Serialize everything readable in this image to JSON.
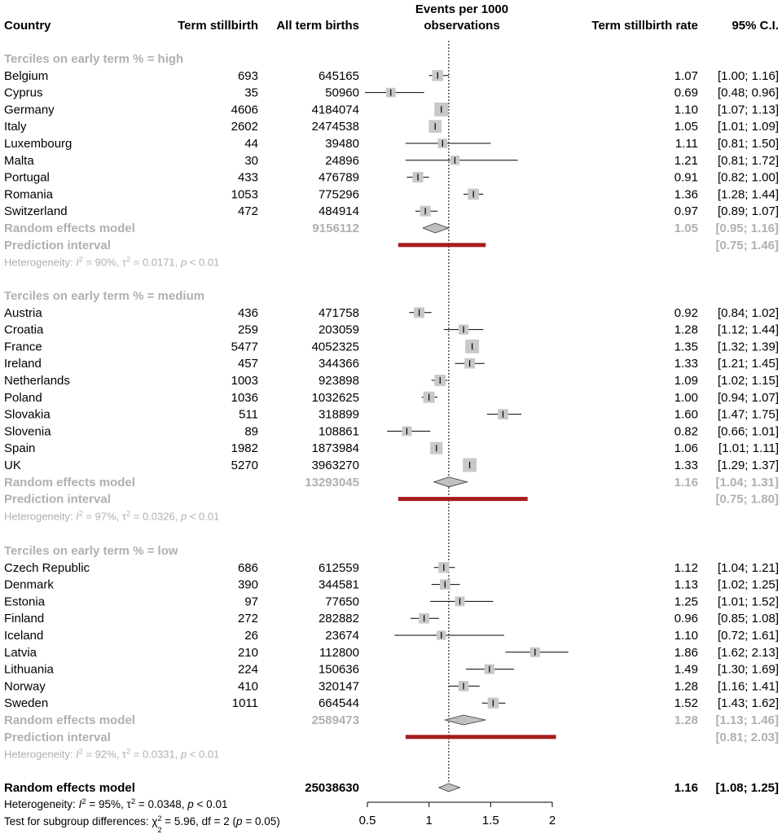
{
  "colors": {
    "text": "#000000",
    "grey_text": "#b0b0b0",
    "box": "#c8c8c8",
    "diamond": "#c0c0c0",
    "prediction_bar": "#a51d1d",
    "ci_line": "#000000"
  },
  "headers": {
    "country": "Country",
    "stillbirth": "Term stillbirth",
    "births": "All term births",
    "events_line1": "Events per 1000",
    "events_line2": "observations",
    "rate": "Term stillbirth rate",
    "ci": "95% C.I."
  },
  "chart_data": {
    "type": "forest",
    "x_axis": {
      "ticks": [
        0.5,
        1,
        1.5,
        2
      ],
      "tick_labels": [
        "0.5",
        "1",
        "1.5",
        "2"
      ],
      "xlim": [
        0.5,
        2
      ],
      "reference_line": 1.16
    },
    "groups": [
      {
        "label": "Terciles on early term % = high",
        "studies": [
          {
            "country": "Belgium",
            "events": "693",
            "total": "645165",
            "rate": 1.07,
            "lower": 1.0,
            "upper": 1.16,
            "rate_text": "1.07",
            "ci_text": "[1.00; 1.16]"
          },
          {
            "country": "Cyprus",
            "events": "35",
            "total": "50960",
            "rate": 0.69,
            "lower": 0.48,
            "upper": 0.96,
            "rate_text": "0.69",
            "ci_text": "[0.48; 0.96]"
          },
          {
            "country": "Germany",
            "events": "4606",
            "total": "4184074",
            "rate": 1.1,
            "lower": 1.07,
            "upper": 1.13,
            "rate_text": "1.10",
            "ci_text": "[1.07; 1.13]"
          },
          {
            "country": "Italy",
            "events": "2602",
            "total": "2474538",
            "rate": 1.05,
            "lower": 1.01,
            "upper": 1.09,
            "rate_text": "1.05",
            "ci_text": "[1.01; 1.09]"
          },
          {
            "country": "Luxembourg",
            "events": "44",
            "total": "39480",
            "rate": 1.11,
            "lower": 0.81,
            "upper": 1.5,
            "rate_text": "1.11",
            "ci_text": "[0.81; 1.50]"
          },
          {
            "country": "Malta",
            "events": "30",
            "total": "24896",
            "rate": 1.21,
            "lower": 0.81,
            "upper": 1.72,
            "rate_text": "1.21",
            "ci_text": "[0.81; 1.72]"
          },
          {
            "country": "Portugal",
            "events": "433",
            "total": "476789",
            "rate": 0.91,
            "lower": 0.82,
            "upper": 1.0,
            "rate_text": "0.91",
            "ci_text": "[0.82; 1.00]"
          },
          {
            "country": "Romania",
            "events": "1053",
            "total": "775296",
            "rate": 1.36,
            "lower": 1.28,
            "upper": 1.44,
            "rate_text": "1.36",
            "ci_text": "[1.28; 1.44]"
          },
          {
            "country": "Switzerland",
            "events": "472",
            "total": "484914",
            "rate": 0.97,
            "lower": 0.89,
            "upper": 1.07,
            "rate_text": "0.97",
            "ci_text": "[0.89; 1.07]"
          }
        ],
        "random_effects": {
          "label": "Random effects model",
          "total": "9156112",
          "rate": 1.05,
          "lower": 0.95,
          "upper": 1.16,
          "rate_text": "1.05",
          "ci_text": "[0.95; 1.16]"
        },
        "prediction": {
          "label": "Prediction interval",
          "lower": 0.75,
          "upper": 1.46,
          "ci_text": "[0.75; 1.46]"
        },
        "heterogeneity": {
          "prefix": "Heterogeneity: ",
          "i2": "90%",
          "tau2": "0.0171",
          "p": "< 0.01"
        }
      },
      {
        "label": "Terciles on early term % = medium",
        "studies": [
          {
            "country": "Austria",
            "events": "436",
            "total": "471758",
            "rate": 0.92,
            "lower": 0.84,
            "upper": 1.02,
            "rate_text": "0.92",
            "ci_text": "[0.84; 1.02]"
          },
          {
            "country": "Croatia",
            "events": "259",
            "total": "203059",
            "rate": 1.28,
            "lower": 1.12,
            "upper": 1.44,
            "rate_text": "1.28",
            "ci_text": "[1.12; 1.44]"
          },
          {
            "country": "France",
            "events": "5477",
            "total": "4052325",
            "rate": 1.35,
            "lower": 1.32,
            "upper": 1.39,
            "rate_text": "1.35",
            "ci_text": "[1.32; 1.39]"
          },
          {
            "country": "Ireland",
            "events": "457",
            "total": "344366",
            "rate": 1.33,
            "lower": 1.21,
            "upper": 1.45,
            "rate_text": "1.33",
            "ci_text": "[1.21; 1.45]"
          },
          {
            "country": "Netherlands",
            "events": "1003",
            "total": "923898",
            "rate": 1.09,
            "lower": 1.02,
            "upper": 1.15,
            "rate_text": "1.09",
            "ci_text": "[1.02; 1.15]"
          },
          {
            "country": "Poland",
            "events": "1036",
            "total": "1032625",
            "rate": 1.0,
            "lower": 0.94,
            "upper": 1.07,
            "rate_text": "1.00",
            "ci_text": "[0.94; 1.07]"
          },
          {
            "country": "Slovakia",
            "events": "511",
            "total": "318899",
            "rate": 1.6,
            "lower": 1.47,
            "upper": 1.75,
            "rate_text": "1.60",
            "ci_text": "[1.47; 1.75]"
          },
          {
            "country": "Slovenia",
            "events": "89",
            "total": "108861",
            "rate": 0.82,
            "lower": 0.66,
            "upper": 1.01,
            "rate_text": "0.82",
            "ci_text": "[0.66; 1.01]"
          },
          {
            "country": "Spain",
            "events": "1982",
            "total": "1873984",
            "rate": 1.06,
            "lower": 1.01,
            "upper": 1.11,
            "rate_text": "1.06",
            "ci_text": "[1.01; 1.11]"
          },
          {
            "country": "UK",
            "events": "5270",
            "total": "3963270",
            "rate": 1.33,
            "lower": 1.29,
            "upper": 1.37,
            "rate_text": "1.33",
            "ci_text": "[1.29; 1.37]"
          }
        ],
        "random_effects": {
          "label": "Random effects model",
          "total": "13293045",
          "rate": 1.16,
          "lower": 1.04,
          "upper": 1.31,
          "rate_text": "1.16",
          "ci_text": "[1.04; 1.31]"
        },
        "prediction": {
          "label": "Prediction interval",
          "lower": 0.75,
          "upper": 1.8,
          "ci_text": "[0.75; 1.80]"
        },
        "heterogeneity": {
          "prefix": "Heterogeneity: ",
          "i2": "97%",
          "tau2": "0.0326",
          "p": "< 0.01"
        }
      },
      {
        "label": "Terciles on early term % = low",
        "studies": [
          {
            "country": "Czech Republic",
            "events": "686",
            "total": "612559",
            "rate": 1.12,
            "lower": 1.04,
            "upper": 1.21,
            "rate_text": "1.12",
            "ci_text": "[1.04; 1.21]"
          },
          {
            "country": "Denmark",
            "events": "390",
            "total": "344581",
            "rate": 1.13,
            "lower": 1.02,
            "upper": 1.25,
            "rate_text": "1.13",
            "ci_text": "[1.02; 1.25]"
          },
          {
            "country": "Estonia",
            "events": "97",
            "total": "77650",
            "rate": 1.25,
            "lower": 1.01,
            "upper": 1.52,
            "rate_text": "1.25",
            "ci_text": "[1.01; 1.52]"
          },
          {
            "country": "Finland",
            "events": "272",
            "total": "282882",
            "rate": 0.96,
            "lower": 0.85,
            "upper": 1.08,
            "rate_text": "0.96",
            "ci_text": "[0.85; 1.08]"
          },
          {
            "country": "Iceland",
            "events": "26",
            "total": "23674",
            "rate": 1.1,
            "lower": 0.72,
            "upper": 1.61,
            "rate_text": "1.10",
            "ci_text": "[0.72; 1.61]"
          },
          {
            "country": "Latvia",
            "events": "210",
            "total": "112800",
            "rate": 1.86,
            "lower": 1.62,
            "upper": 2.13,
            "rate_text": "1.86",
            "ci_text": "[1.62; 2.13]"
          },
          {
            "country": "Lithuania",
            "events": "224",
            "total": "150636",
            "rate": 1.49,
            "lower": 1.3,
            "upper": 1.69,
            "rate_text": "1.49",
            "ci_text": "[1.30; 1.69]"
          },
          {
            "country": "Norway",
            "events": "410",
            "total": "320147",
            "rate": 1.28,
            "lower": 1.16,
            "upper": 1.41,
            "rate_text": "1.28",
            "ci_text": "[1.16; 1.41]"
          },
          {
            "country": "Sweden",
            "events": "1011",
            "total": "664544",
            "rate": 1.52,
            "lower": 1.43,
            "upper": 1.62,
            "rate_text": "1.52",
            "ci_text": "[1.43; 1.62]"
          }
        ],
        "random_effects": {
          "label": "Random effects model",
          "total": "2589473",
          "rate": 1.28,
          "lower": 1.13,
          "upper": 1.46,
          "rate_text": "1.28",
          "ci_text": "[1.13; 1.46]"
        },
        "prediction": {
          "label": "Prediction interval",
          "lower": 0.81,
          "upper": 2.03,
          "ci_text": "[0.81; 2.03]"
        },
        "heterogeneity": {
          "prefix": "Heterogeneity: ",
          "i2": "92%",
          "tau2": "0.0331",
          "p": "< 0.01"
        }
      }
    ],
    "overall": {
      "label": "Random effects model",
      "total": "25038630",
      "rate": 1.16,
      "lower": 1.08,
      "upper": 1.25,
      "rate_text": "1.16",
      "ci_text": "[1.08; 1.25]",
      "heterogeneity": {
        "prefix": "Heterogeneity: ",
        "i2": "95%",
        "tau2": "0.0348",
        "p": "< 0.01"
      },
      "subgroup_test": {
        "prefix": "Test for subgroup differences: ",
        "chi2": "5.96",
        "df": "2",
        "p": "0.05"
      }
    }
  }
}
